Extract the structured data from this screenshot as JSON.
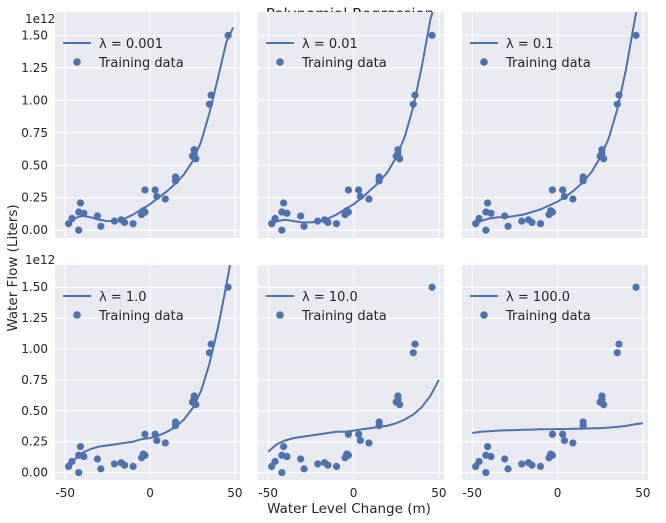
{
  "figure": {
    "title": "Polynomial Regression",
    "xlabel": "Water Level Change (m)",
    "ylabel": "Water Flow (Liters)",
    "offset_text": "1e12"
  },
  "colors": {
    "panel_bg": "#EAEAF2",
    "grid": "#FFFFFF",
    "series": "#4C72B0",
    "text": "#262626"
  },
  "chart_data": {
    "type": "scatter",
    "layout": "2x3 grid of subplots sharing x and y axes",
    "xlim": [
      -56,
      53
    ],
    "ylim": [
      -0.06,
      1.68
    ],
    "y_scale_note": "values in units of 1e12 liters",
    "xticks": [
      -50,
      0,
      50
    ],
    "yticks": [
      0.0,
      0.25,
      0.5,
      0.75,
      1.0,
      1.25,
      1.5
    ],
    "grid": true,
    "legend_placement": "upper-left",
    "training_data": {
      "name": "Training data",
      "x": [
        -48,
        -46,
        -42,
        -42,
        -41,
        -39,
        -31,
        -29,
        -21,
        -17,
        -15,
        -10,
        -5,
        -4,
        -3,
        -3,
        3,
        4,
        9,
        15,
        15,
        25,
        26,
        26,
        27,
        35,
        36,
        46
      ],
      "y": [
        0.05,
        0.09,
        0.0,
        0.14,
        0.21,
        0.13,
        0.11,
        0.03,
        0.07,
        0.08,
        0.06,
        0.05,
        0.12,
        0.15,
        0.14,
        0.31,
        0.31,
        0.26,
        0.24,
        0.38,
        0.41,
        0.57,
        0.62,
        0.59,
        0.55,
        0.97,
        1.04,
        1.5
      ]
    },
    "panels": [
      {
        "lambda_label": "λ = 0.001",
        "lambda": 0.001,
        "fit_x": [
          -48,
          -45,
          -40,
          -35,
          -30,
          -25,
          -20,
          -15,
          -10,
          -5,
          0,
          5,
          10,
          15,
          20,
          25,
          30,
          35,
          40,
          45,
          49
        ],
        "fit_y": [
          0.04,
          0.09,
          0.11,
          0.1,
          0.08,
          0.07,
          0.07,
          0.09,
          0.12,
          0.16,
          0.2,
          0.25,
          0.3,
          0.36,
          0.43,
          0.53,
          0.68,
          0.9,
          1.17,
          1.45,
          1.56
        ]
      },
      {
        "lambda_label": "λ = 0.01",
        "lambda": 0.01,
        "fit_x": [
          -48,
          -45,
          -40,
          -35,
          -30,
          -25,
          -20,
          -15,
          -10,
          -5,
          0,
          5,
          10,
          15,
          20,
          25,
          30,
          35,
          40,
          45,
          50
        ],
        "fit_y": [
          0.04,
          0.07,
          0.08,
          0.07,
          0.06,
          0.06,
          0.07,
          0.09,
          0.12,
          0.16,
          0.2,
          0.25,
          0.31,
          0.37,
          0.45,
          0.56,
          0.72,
          0.95,
          1.26,
          1.62,
          1.85
        ]
      },
      {
        "lambda_label": "λ = 0.1",
        "lambda": 0.1,
        "fit_x": [
          -48,
          -45,
          -40,
          -35,
          -30,
          -25,
          -20,
          -15,
          -10,
          -5,
          0,
          5,
          10,
          15,
          20,
          25,
          30,
          35,
          40,
          45,
          50
        ],
        "fit_y": [
          0.04,
          0.07,
          0.09,
          0.1,
          0.1,
          0.11,
          0.12,
          0.14,
          0.16,
          0.19,
          0.22,
          0.26,
          0.31,
          0.37,
          0.45,
          0.56,
          0.71,
          0.93,
          1.23,
          1.6,
          1.95
        ]
      },
      {
        "lambda_label": "λ = 1.0",
        "lambda": 1.0,
        "fit_x": [
          -48,
          -45,
          -40,
          -35,
          -30,
          -25,
          -20,
          -15,
          -10,
          -5,
          0,
          5,
          10,
          15,
          20,
          25,
          30,
          35,
          40,
          45,
          48
        ],
        "fit_y": [
          0.06,
          0.1,
          0.16,
          0.19,
          0.21,
          0.22,
          0.23,
          0.24,
          0.25,
          0.27,
          0.28,
          0.3,
          0.33,
          0.37,
          0.43,
          0.52,
          0.66,
          0.88,
          1.17,
          1.52,
          1.75
        ]
      },
      {
        "lambda_label": "λ = 10.0",
        "lambda": 10.0,
        "fit_x": [
          -50,
          -45,
          -40,
          -35,
          -30,
          -25,
          -20,
          -15,
          -10,
          -5,
          0,
          5,
          10,
          15,
          20,
          25,
          30,
          35,
          40,
          45,
          50
        ],
        "fit_y": [
          0.17,
          0.23,
          0.26,
          0.28,
          0.29,
          0.3,
          0.31,
          0.32,
          0.33,
          0.33,
          0.34,
          0.35,
          0.36,
          0.37,
          0.38,
          0.4,
          0.43,
          0.47,
          0.53,
          0.62,
          0.75
        ]
      },
      {
        "lambda_label": "λ = 100.0",
        "lambda": 100.0,
        "fit_x": [
          -50,
          -45,
          -40,
          -35,
          -30,
          -25,
          -20,
          -15,
          -10,
          -5,
          0,
          5,
          10,
          15,
          20,
          25,
          30,
          35,
          40,
          45,
          50
        ],
        "fit_y": [
          0.32,
          0.33,
          0.335,
          0.34,
          0.342,
          0.344,
          0.346,
          0.348,
          0.35,
          0.351,
          0.352,
          0.353,
          0.354,
          0.356,
          0.358,
          0.36,
          0.364,
          0.37,
          0.378,
          0.39,
          0.4
        ]
      }
    ]
  }
}
